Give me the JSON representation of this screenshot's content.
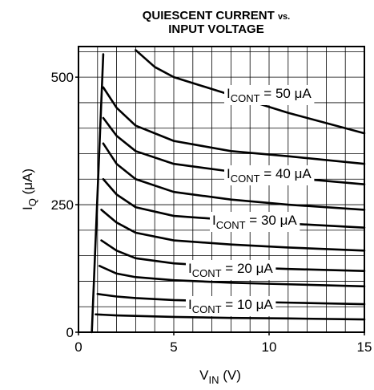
{
  "chart_data": {
    "type": "line",
    "title": "QUIESCENT CURRENT",
    "title_small": "vs.",
    "title_line2": "INPUT VOLTAGE",
    "xlabel": [
      "V",
      "IN",
      " (V)"
    ],
    "ylabel": [
      "I",
      "Q",
      " (μA)"
    ],
    "xlim": [
      0,
      15
    ],
    "ylim": [
      0,
      560
    ],
    "xticks": [
      0,
      5,
      10,
      15
    ],
    "yticks": [
      0,
      250,
      500
    ],
    "xgrid": [
      1,
      2,
      3,
      4,
      5,
      6,
      7,
      8,
      9,
      10,
      11,
      12,
      13,
      14
    ],
    "ygrid": [
      50,
      100,
      150,
      200,
      250,
      300,
      350,
      400,
      450,
      500,
      550
    ],
    "color": "#000000",
    "series": [
      {
        "x": [
          0.7,
          1.3
        ],
        "values": [
          0,
          545
        ]
      },
      {
        "label": [
          "I",
          "CONT",
          " = 50 μA"
        ],
        "x": [
          3,
          4,
          5,
          8,
          11,
          15
        ],
        "values": [
          553,
          520,
          500,
          465,
          430,
          390
        ]
      },
      {
        "x": [
          1.3,
          2,
          3,
          5,
          8,
          11,
          15
        ],
        "values": [
          480,
          440,
          405,
          375,
          355,
          345,
          330
        ]
      },
      {
        "label": [
          "I",
          "CONT",
          " = 40 μA"
        ],
        "x": [
          1.3,
          2,
          3,
          5,
          8,
          11,
          15
        ],
        "values": [
          420,
          385,
          355,
          330,
          315,
          303,
          290
        ]
      },
      {
        "x": [
          1.3,
          2,
          3,
          5,
          8,
          11,
          15
        ],
        "values": [
          370,
          330,
          300,
          275,
          260,
          250,
          240
        ]
      },
      {
        "label": [
          "I",
          "CONT",
          " = 30 μA"
        ],
        "x": [
          1.3,
          2,
          3,
          5,
          8,
          11,
          15
        ],
        "values": [
          300,
          270,
          245,
          228,
          220,
          213,
          205
        ]
      },
      {
        "x": [
          1.2,
          2,
          3,
          5,
          8,
          11,
          15
        ],
        "values": [
          240,
          215,
          195,
          180,
          172,
          166,
          160
        ]
      },
      {
        "label": [
          "I",
          "CONT",
          " = 20 μA"
        ],
        "x": [
          1.2,
          2,
          3,
          5,
          8,
          11,
          15
        ],
        "values": [
          180,
          160,
          145,
          135,
          128,
          124,
          120
        ]
      },
      {
        "x": [
          1.1,
          2,
          3,
          5,
          8,
          11,
          15
        ],
        "values": [
          130,
          115,
          108,
          102,
          97,
          94,
          90
        ]
      },
      {
        "label": [
          "I",
          "CONT",
          " = 10 μA"
        ],
        "x": [
          1.0,
          2,
          3,
          5,
          8,
          11,
          15
        ],
        "values": [
          75,
          70,
          67,
          63,
          60,
          58,
          55
        ]
      },
      {
        "x": [
          0.9,
          2,
          3,
          5,
          8,
          11,
          15
        ],
        "values": [
          35,
          33,
          32,
          30,
          28,
          27,
          25
        ]
      }
    ]
  }
}
